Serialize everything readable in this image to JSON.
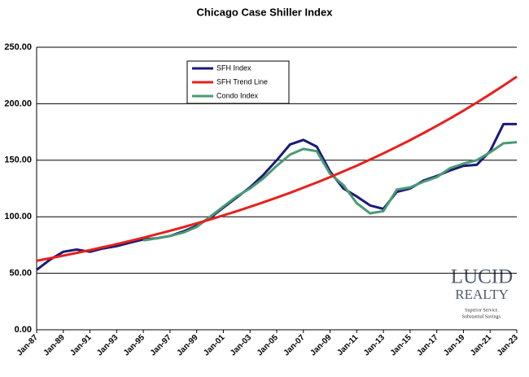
{
  "chart_data": {
    "type": "line",
    "title": "Chicago Case Shiller Index",
    "categories": [
      "Jan-87",
      null,
      "Jan-89",
      null,
      "Jan-91",
      null,
      "Jan-93",
      null,
      "Jan-95",
      null,
      "Jan-97",
      null,
      "Jan-99",
      null,
      "Jan-01",
      null,
      "Jan-03",
      null,
      "Jan-05",
      null,
      "Jan-07",
      null,
      "Jan-09",
      null,
      "Jan-11",
      null,
      "Jan-13",
      null,
      "Jan-15",
      null,
      "Jan-17",
      null,
      "Jan-19",
      null,
      "Jan-21",
      null,
      "Jan-23"
    ],
    "series": [
      {
        "name": "SFH Index",
        "color": "#1a1a7a",
        "values": [
          53,
          62,
          69,
          71,
          69,
          72,
          74,
          77,
          80,
          81,
          83,
          87,
          92,
          99,
          108,
          117,
          126,
          137,
          150,
          164,
          168,
          162,
          140,
          125,
          118,
          110,
          107,
          122,
          125,
          132,
          136,
          141,
          145,
          146,
          158,
          182,
          182
        ]
      },
      {
        "name": "SFH Trend Line",
        "color": "#e8201c",
        "values": [
          61,
          63.3,
          65.6,
          68,
          70.5,
          73.1,
          75.8,
          78.6,
          81.5,
          84.5,
          87.6,
          90.8,
          94.2,
          97.6,
          101.2,
          104.9,
          108.8,
          112.8,
          116.9,
          121.2,
          125.7,
          130.3,
          135.1,
          140.1,
          145.2,
          150.6,
          156.1,
          161.9,
          167.8,
          174,
          180.4,
          187,
          193.9,
          201,
          208.4,
          216.1,
          224
        ]
      },
      {
        "name": "Condo Index",
        "color": "#4a9a72",
        "values": [
          null,
          null,
          null,
          null,
          null,
          null,
          null,
          null,
          79,
          81,
          83,
          86,
          91,
          100,
          109,
          118,
          125,
          134,
          145,
          155,
          160,
          158,
          138,
          128,
          112,
          103,
          105,
          124,
          126,
          131,
          135,
          143,
          147,
          150,
          157,
          165,
          166
        ]
      }
    ],
    "ylim": [
      0,
      250
    ],
    "yticks": [
      {
        "value": 0,
        "label": "0.00"
      },
      {
        "value": 50,
        "label": "50.00"
      },
      {
        "value": 100,
        "label": "100.00"
      },
      {
        "value": 150,
        "label": "150.00"
      },
      {
        "value": 200,
        "label": "200.00"
      },
      {
        "value": 250,
        "label": "250.00"
      }
    ],
    "grid": true,
    "legend": "upper left"
  },
  "logo": {
    "name": "LUCID",
    "sub": "REALTY",
    "tagline1": "Superior Service.",
    "tagline2": "Substantial Savings."
  }
}
